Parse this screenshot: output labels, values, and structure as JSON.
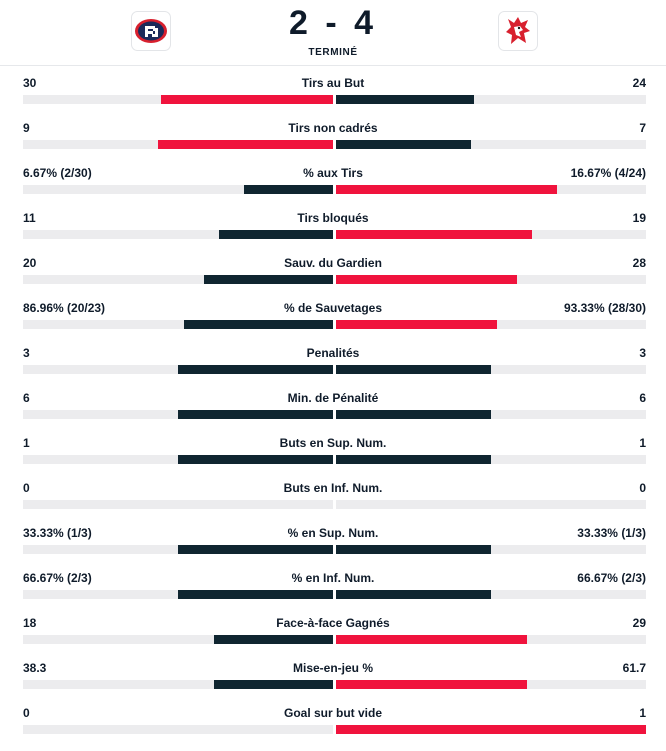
{
  "match": {
    "score": "2 - 4",
    "status": "TERMINÉ",
    "home_logo_icon": "fribourg-gotteron-logo-icon",
    "away_logo_icon": "lausanne-hc-lion-logo-icon"
  },
  "colors": {
    "dark": "#0f2530",
    "red": "#f0133d",
    "track": "#ececee"
  },
  "stats": [
    {
      "name": "Tirs au But",
      "home": "30",
      "away": "24",
      "home_share": 0.556,
      "away_share": 0.444,
      "home_color": "red",
      "away_color": "dark"
    },
    {
      "name": "Tirs non cadrés",
      "home": "9",
      "away": "7",
      "home_share": 0.563,
      "away_share": 0.437,
      "home_color": "red",
      "away_color": "dark"
    },
    {
      "name": "% aux Tirs",
      "home": "6.67% (2/30)",
      "away": "16.67% (4/24)",
      "home_share": 0.286,
      "away_share": 0.714,
      "home_color": "dark",
      "away_color": "red"
    },
    {
      "name": "Tirs bloqués",
      "home": "11",
      "away": "19",
      "home_share": 0.367,
      "away_share": 0.633,
      "home_color": "dark",
      "away_color": "red"
    },
    {
      "name": "Sauv. du Gardien",
      "home": "20",
      "away": "28",
      "home_share": 0.417,
      "away_share": 0.583,
      "home_color": "dark",
      "away_color": "red"
    },
    {
      "name": "% de Sauvetages",
      "home": "86.96% (20/23)",
      "away": "93.33% (28/30)",
      "home_share": 0.482,
      "away_share": 0.518,
      "home_color": "dark",
      "away_color": "red"
    },
    {
      "name": "Penalités",
      "home": "3",
      "away": "3",
      "home_share": 0.5,
      "away_share": 0.5,
      "home_color": "dark",
      "away_color": "dark"
    },
    {
      "name": "Min. de Pénalité",
      "home": "6",
      "away": "6",
      "home_share": 0.5,
      "away_share": 0.5,
      "home_color": "dark",
      "away_color": "dark"
    },
    {
      "name": "Buts en Sup. Num.",
      "home": "1",
      "away": "1",
      "home_share": 0.5,
      "away_share": 0.5,
      "home_color": "dark",
      "away_color": "dark"
    },
    {
      "name": "Buts en Inf. Num.",
      "home": "0",
      "away": "0",
      "home_share": 0,
      "away_share": 0,
      "home_color": "dark",
      "away_color": "dark"
    },
    {
      "name": "% en Sup. Num.",
      "home": "33.33% (1/3)",
      "away": "33.33% (1/3)",
      "home_share": 0.5,
      "away_share": 0.5,
      "home_color": "dark",
      "away_color": "dark"
    },
    {
      "name": "% en Inf. Num.",
      "home": "66.67% (2/3)",
      "away": "66.67% (2/3)",
      "home_share": 0.5,
      "away_share": 0.5,
      "home_color": "dark",
      "away_color": "dark"
    },
    {
      "name": "Face-à-face Gagnés",
      "home": "18",
      "away": "29",
      "home_share": 0.383,
      "away_share": 0.617,
      "home_color": "dark",
      "away_color": "red"
    },
    {
      "name": "Mise-en-jeu %",
      "home": "38.3",
      "away": "61.7",
      "home_share": 0.383,
      "away_share": 0.617,
      "home_color": "dark",
      "away_color": "red"
    },
    {
      "name": "Goal sur but vide",
      "home": "0",
      "away": "1",
      "home_share": 0,
      "away_share": 1,
      "home_color": "dark",
      "away_color": "red"
    }
  ]
}
